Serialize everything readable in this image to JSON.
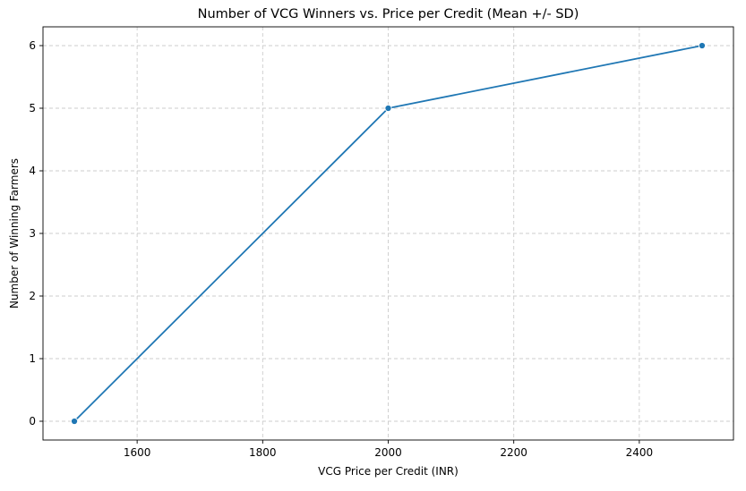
{
  "chart_data": {
    "type": "line",
    "title": "Number of VCG Winners vs. Price per Credit (Mean +/- SD)",
    "xlabel": "VCG Price per Credit (INR)",
    "ylabel": "Number of Winning Farmers",
    "xlim": [
      1450,
      2550
    ],
    "ylim": [
      -0.3,
      6.3
    ],
    "xticks": [
      1600,
      1800,
      2000,
      2200,
      2400
    ],
    "yticks": [
      0,
      1,
      2,
      3,
      4,
      5,
      6
    ],
    "grid": true,
    "colors": {
      "line": "#1f77b4",
      "marker": "#1f77b4",
      "grid": "#cccccc"
    },
    "series": [
      {
        "x": [
          1500,
          2000,
          2500
        ],
        "y": [
          0,
          5,
          6
        ]
      }
    ]
  }
}
